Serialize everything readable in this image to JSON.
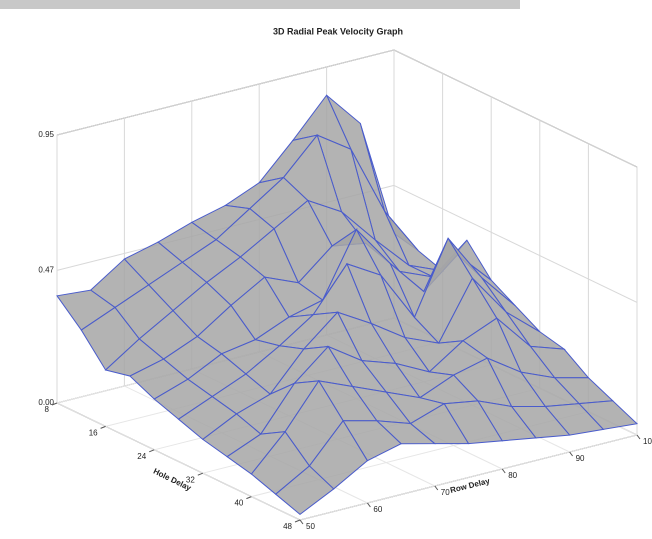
{
  "chart_data": {
    "type": "surface",
    "title": "3D Radial Peak Velocity Graph",
    "xlabel": "Hole Delay",
    "ylabel": "Row Delay",
    "x": [
      8,
      12,
      16,
      20,
      24,
      28,
      32,
      36,
      40,
      44,
      48
    ],
    "y": [
      50,
      55,
      60,
      65,
      70,
      75,
      80,
      85,
      90,
      95,
      100
    ],
    "z": [
      [
        0.38,
        0.37,
        0.45,
        0.48,
        0.52,
        0.55,
        0.6,
        0.72,
        0.85,
        0.72,
        0.3
      ],
      [
        0.3,
        0.35,
        0.4,
        0.45,
        0.5,
        0.58,
        0.66,
        0.78,
        0.7,
        0.45,
        0.28
      ],
      [
        0.2,
        0.28,
        0.35,
        0.42,
        0.48,
        0.55,
        0.62,
        0.55,
        0.42,
        0.3,
        0.25
      ],
      [
        0.22,
        0.25,
        0.3,
        0.38,
        0.45,
        0.4,
        0.5,
        0.48,
        0.35,
        0.3,
        0.4
      ],
      [
        0.18,
        0.22,
        0.28,
        0.3,
        0.35,
        0.38,
        0.6,
        0.45,
        0.32,
        0.42,
        0.3
      ],
      [
        0.15,
        0.2,
        0.25,
        0.32,
        0.4,
        0.55,
        0.48,
        0.3,
        0.55,
        0.38,
        0.25
      ],
      [
        0.12,
        0.18,
        0.22,
        0.35,
        0.45,
        0.38,
        0.3,
        0.25,
        0.45,
        0.3,
        0.2
      ],
      [
        0.1,
        0.15,
        0.3,
        0.4,
        0.32,
        0.28,
        0.22,
        0.3,
        0.35,
        0.22,
        0.18
      ],
      [
        0.08,
        0.2,
        0.35,
        0.3,
        0.25,
        0.2,
        0.25,
        0.28,
        0.2,
        0.15,
        0.12
      ],
      [
        0.05,
        0.12,
        0.25,
        0.22,
        0.18,
        0.22,
        0.2,
        0.15,
        0.12,
        0.1,
        0.08
      ],
      [
        0.02,
        0.08,
        0.15,
        0.18,
        0.15,
        0.12,
        0.1,
        0.08,
        0.06,
        0.05,
        0.04
      ]
    ],
    "xlim": [
      8,
      48
    ],
    "xticks": [
      8,
      16,
      24,
      32,
      40,
      48
    ],
    "ylim": [
      50,
      100
    ],
    "yticks": [
      50,
      60,
      70,
      80,
      90,
      100
    ],
    "zlim": [
      0,
      0.95
    ],
    "zticks": [
      {
        "value": 0,
        "label": "0.00"
      },
      0.47,
      0.95
    ],
    "color": "#a6a6a6",
    "edge_color": "#4a5ccc",
    "grid": true
  }
}
